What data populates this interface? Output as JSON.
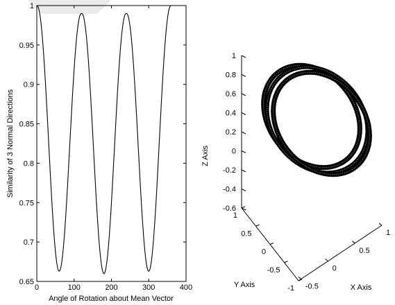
{
  "chart_data": [
    {
      "type": "line",
      "title": "",
      "xlabel": "Angle of Rotation about Mean Vector",
      "ylabel": "Similarity of 3 Normal Directions",
      "xlim": [
        0,
        400
      ],
      "ylim": [
        0.65,
        1.0
      ],
      "xticks": [
        "0",
        "100",
        "200",
        "300",
        "400"
      ],
      "yticks": [
        "0.65",
        "0.7",
        "0.75",
        "0.8",
        "0.85",
        "0.9",
        "0.95",
        "1"
      ],
      "grid": false,
      "series": [
        {
          "color": "#000000",
          "description_points": {
            "maxima_x": [
              0,
              120,
              240,
              360
            ],
            "maxima_y": [
              1.0,
              0.99,
              0.99,
              1.0
            ],
            "minima_x": [
              60,
              180,
              300
            ],
            "minima_y": [
              0.663,
              0.66,
              0.663
            ]
          }
        }
      ]
    },
    {
      "type": "line3d",
      "title": "",
      "xlabel": "X Axis",
      "ylabel": "Y Axis",
      "zlabel": "Z Axis",
      "xticks": [
        "-0.5",
        "0",
        "0.5",
        "1"
      ],
      "yticks": [
        "-1",
        "-0.5",
        "0",
        "0.5",
        "1"
      ],
      "zticks": [
        "-0.6",
        "-0.4",
        "-0.2",
        "0",
        "0.2",
        "0.4",
        "0.6",
        "0.8",
        "1"
      ],
      "grid": false,
      "rings": 3,
      "color": "#000000"
    }
  ]
}
